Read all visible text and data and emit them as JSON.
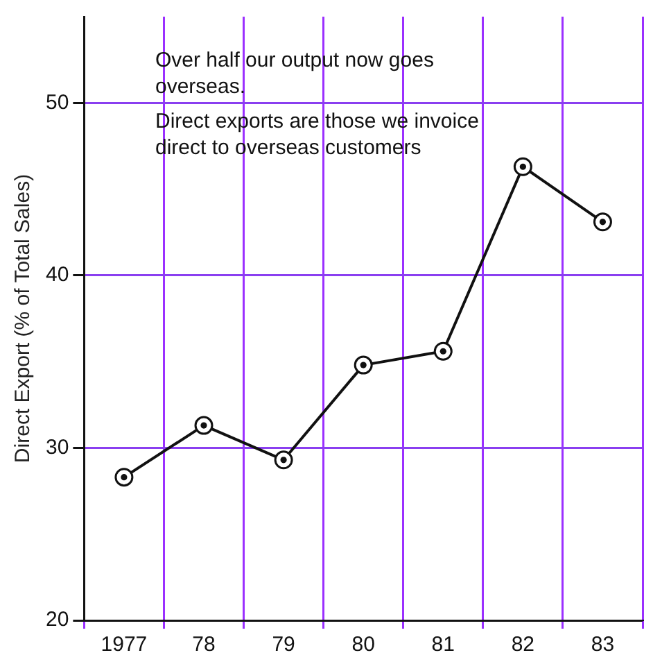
{
  "chart_data": {
    "type": "line",
    "ylabel": "Direct Export (% of Total Sales)",
    "categories": [
      "1977",
      "78",
      "79",
      "80",
      "81",
      "82",
      "83"
    ],
    "series": [
      {
        "color": "#111111",
        "values": [
          28.3,
          31.3,
          29.3,
          34.8,
          35.6,
          46.3,
          43.1
        ]
      }
    ],
    "ylim": [
      20,
      55
    ],
    "yticks": [
      20,
      30,
      40,
      50
    ],
    "grid": true,
    "marker": "circle",
    "line_style": "solid",
    "annotations": [
      "Over half our output now goes overseas.",
      "Direct exports are those we invoice direct to overseas customers"
    ]
  }
}
